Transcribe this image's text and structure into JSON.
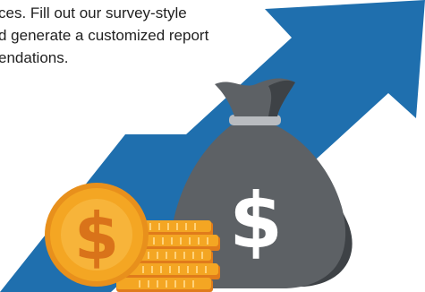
{
  "intro": {
    "line1": "ces. Fill out our survey-style",
    "line2": "d generate a customized report",
    "line3": "endations."
  },
  "illustration": {
    "arrow_color": "#1f6fae",
    "bag_color": "#5d6165",
    "bag_band_color": "#b9bcc0",
    "coin_color": "#f4a623",
    "coin_dark_color": "#e07b1b",
    "currency_symbol": "$"
  }
}
